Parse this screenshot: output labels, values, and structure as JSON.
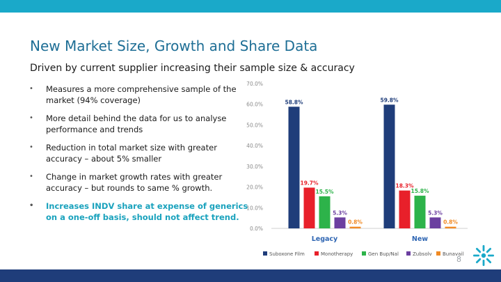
{
  "slide": {
    "title": "New Market Size, Growth and Share Data",
    "subtitle": "Driven by current supplier increasing their sample size & accuracy",
    "page_number": "8"
  },
  "bullets": [
    {
      "marker": "•",
      "text": "Measures a more comprehensive sample of the market (94% coverage)"
    },
    {
      "marker": "•",
      "text": "More detail behind the data for us to analyse performance and trends"
    },
    {
      "marker": "•",
      "text": "Reduction in total market size with greater accuracy – about 5% smaller"
    },
    {
      "marker": "•",
      "text": "Change in market growth rates with greater accuracy – but rounds to same % growth."
    },
    {
      "marker": "•",
      "text": "Increases INDV share at expense of generics on a one-off basis, should not affect trend."
    }
  ],
  "colors": {
    "accent": "#1aa9c9",
    "title": "#1e6e95",
    "highlight": "#1aa2bd",
    "footer": "#1f3d7a"
  },
  "chart_data": {
    "type": "bar",
    "categories": [
      "Legacy",
      "New"
    ],
    "ylim": [
      0,
      70
    ],
    "yticks": [
      0,
      10,
      20,
      30,
      40,
      50,
      60,
      70
    ],
    "ytick_labels": [
      "0.0%",
      "10.0%",
      "20.0%",
      "30.0%",
      "40.0%",
      "50.0%",
      "60.0%",
      "70.0%"
    ],
    "series": [
      {
        "name": "Suboxone Film",
        "color": "#1f3d7a",
        "values": [
          58.8,
          59.8
        ],
        "labels": [
          "58.8%",
          "59.8%"
        ]
      },
      {
        "name": "Monotherapy",
        "color": "#e8202a",
        "values": [
          19.7,
          18.3
        ],
        "labels": [
          "19.7%",
          "18.3%"
        ]
      },
      {
        "name": "Gen Bup/Nal",
        "color": "#2db34a",
        "values": [
          15.5,
          15.8
        ],
        "labels": [
          "15.5%",
          "15.8%"
        ]
      },
      {
        "name": "Zubsolv",
        "color": "#6b3fa0",
        "values": [
          5.3,
          5.3
        ],
        "labels": [
          "5.3%",
          "5.3%"
        ]
      },
      {
        "name": "Bunavail",
        "color": "#f08a24",
        "values": [
          0.8,
          0.8
        ],
        "labels": [
          "0.8%",
          "0.8%"
        ]
      }
    ]
  }
}
